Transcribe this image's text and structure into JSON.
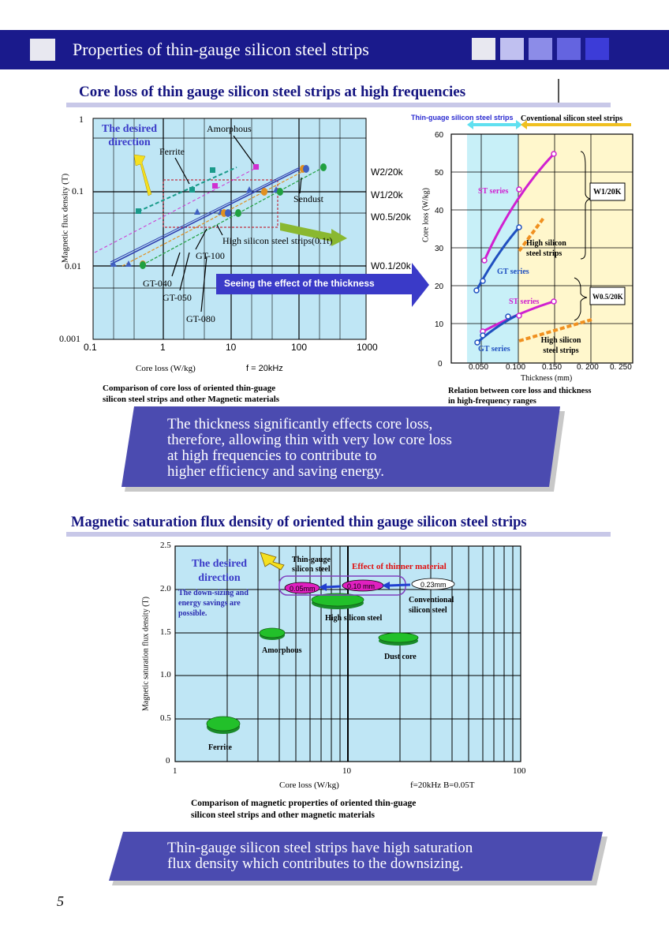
{
  "header": {
    "title": "Properties of thin-gauge silicon steel strips",
    "box_colors": [
      "#e8e8f0",
      "#c0c0f0",
      "#8c8ce8",
      "#6464e0",
      "#3c3cd8"
    ]
  },
  "section1": {
    "title": "Core loss of thin gauge silicon steel strips at high frequencies"
  },
  "chart1": {
    "type": "scatter",
    "xlabel": "Core loss (W/kg)",
    "note": "f = 20kHz",
    "ylabel": "Magnetic flux density (T)",
    "x_ticks": [
      "0.1",
      "1",
      "10",
      "100",
      "1000"
    ],
    "y_ticks": [
      "1",
      "0.1",
      "0.01",
      "0.001"
    ],
    "desired_direction": "The desired direction",
    "labels": {
      "amorphous": "Amorphous",
      "ferrite": "Ferrite",
      "sendust": "Sendust",
      "high_si": "High silicon steel strips(0.1t)",
      "gt100": "GT-100",
      "gt040": "GT-040",
      "gt050": "GT-050",
      "gt080": "GT-080"
    },
    "w_labels": [
      "W2/20k",
      "W1/20k",
      "W0.5/20k",
      "W0.1/20k"
    ],
    "caption": [
      "Comparison of core loss of oriented thin-guage",
      "silicon steel strips and other Magnetic materials"
    ]
  },
  "arrow_label": "Seeing the effect of the thickness",
  "chart2": {
    "type": "line",
    "ylabel": "Core loss (W/kg)",
    "xlabel": "Thickness (mm)",
    "y_ticks": [
      "60",
      "50",
      "40",
      "30",
      "20",
      "10",
      "0"
    ],
    "x_ticks": [
      "0.050",
      "0.100",
      "0.150",
      "0. 200",
      "0. 250"
    ],
    "zone_thin": "Thin-guage silicon steel strips",
    "zone_conv": "Coventional silicon steel strips",
    "series_labels": {
      "st_upper": "ST series",
      "gt_upper": "GT series",
      "hs_upper": "High silicon steel strips",
      "st_lower": "ST series",
      "gt_lower": "GT series",
      "hs_lower": "High silicon steel strips"
    },
    "box_w1": "W1/20K",
    "box_w05": "W0.5/20K",
    "caption": [
      "Relation between core loss and thickness",
      "in high-frequency ranges"
    ]
  },
  "chart_data": [
    {
      "type": "scatter",
      "xlabel": "Core loss (W/kg)",
      "ylabel": "Magnetic flux density (T)",
      "x_scale": "log",
      "y_scale": "log",
      "xlim": [
        0.1,
        1000
      ],
      "ylim": [
        0.001,
        1
      ],
      "series": [
        {
          "name": "Ferrite",
          "color": "#1a9a8a",
          "x": [
            0.5,
            2.5,
            8
          ],
          "y": [
            0.05,
            0.1,
            0.2
          ]
        },
        {
          "name": "Amorphous",
          "color": "#d030d0",
          "x": [
            4,
            10,
            20
          ],
          "y": [
            0.1,
            0.15,
            0.2
          ]
        },
        {
          "name": "GT-040",
          "color": "#4060c0",
          "x": [
            0.2,
            10,
            40
          ],
          "y": [
            0.01,
            0.05,
            0.1
          ]
        },
        {
          "name": "GT-100",
          "color": "#e09020",
          "x": [
            0.3,
            6,
            45,
            110
          ],
          "y": [
            0.01,
            0.05,
            0.1,
            0.2
          ]
        },
        {
          "name": "Sendust",
          "color": "#20a040",
          "x": [
            0.5,
            5,
            60,
            220
          ],
          "y": [
            0.01,
            0.05,
            0.1,
            0.2
          ]
        }
      ]
    },
    {
      "type": "line",
      "xlabel": "Thickness (mm)",
      "ylabel": "Core loss (W/kg)",
      "xlim": [
        0.025,
        0.25
      ],
      "ylim": [
        0,
        60
      ],
      "series": [
        {
          "name": "ST series",
          "color": "#d020d0",
          "x": [
            0.05,
            0.1,
            0.15
          ],
          "y": [
            26,
            45,
            55
          ]
        },
        {
          "name": "GT series",
          "color": "#2050c0",
          "x": [
            0.04,
            0.05,
            0.1
          ],
          "y": [
            18,
            21,
            35
          ]
        },
        {
          "name": "High silicon steel strips",
          "color": "#f09020",
          "x": [
            0.1,
            0.125
          ],
          "y": [
            30,
            38
          ]
        },
        {
          "name": "ST series",
          "color": "#d020d0",
          "x": [
            0.05,
            0.1,
            0.15
          ],
          "y": [
            7,
            10,
            15
          ]
        },
        {
          "name": "GT series",
          "color": "#2050c0",
          "x": [
            0.04,
            0.05,
            0.1
          ],
          "y": [
            4,
            6,
            13
          ]
        },
        {
          "name": "High silicon steel strips",
          "color": "#f09020",
          "x": [
            0.1,
            0.2
          ],
          "y": [
            5,
            10
          ]
        }
      ]
    },
    {
      "type": "scatter",
      "xlabel": "Core loss (W/kg)",
      "ylabel": "Magnetic saturation flux density (T)",
      "x_scale": "log",
      "xlim": [
        1,
        100
      ],
      "ylim": [
        0,
        2.5
      ],
      "series": [
        {
          "name": "Ferrite",
          "x": [
            1.9
          ],
          "y": [
            0.42
          ]
        },
        {
          "name": "Amorphous",
          "x": [
            3.5
          ],
          "y": [
            1.5
          ]
        },
        {
          "name": "High silicon steel",
          "x": [
            6
          ],
          "y": [
            1.86
          ]
        },
        {
          "name": "Dust core",
          "x": [
            17
          ],
          "y": [
            1.44
          ]
        },
        {
          "name": "0.05mm",
          "x": [
            5.5
          ],
          "y": [
            2.0
          ]
        },
        {
          "name": "0.10 mm",
          "x": [
            10.5
          ],
          "y": [
            2.03
          ]
        },
        {
          "name": "0.23mm",
          "x": [
            30
          ],
          "y": [
            2.06
          ]
        }
      ]
    }
  ],
  "banner1": [
    "The thickness significantly effects core loss,",
    "therefore, allowing thin with very low core loss",
    "at high frequencies to contribute to",
    "higher efficiency and saving energy."
  ],
  "section2": {
    "title": "Magnetic saturation flux density of oriented thin gauge silicon steel strips"
  },
  "chart3": {
    "ylabel": "Magnetic saturation flux density (T)",
    "xlabel": "Core loss (W/kg)",
    "note": "f=20kHz B=0.05T",
    "y_ticks": [
      "2.5",
      "2.0",
      "1.5",
      "1.0",
      "0.5",
      "0"
    ],
    "x_ticks": [
      "1",
      "10",
      "100"
    ],
    "desired_direction": "The desired direction",
    "downsizing": "The down-sizing and energy savings are possible.",
    "thin_gauge": "Thin-gauge silicon steel",
    "effect": "Effect of thinner material",
    "conventional": "Conventional silicon steel",
    "labels": {
      "high_si": "High silicon steel",
      "amorphous": "Amorphous",
      "dust": "Dust core",
      "ferrite": "Ferrite",
      "t005": "0.05mm",
      "t010": "0.10 mm",
      "t023": "0.23mm"
    },
    "caption": [
      "Comparison of magnetic properties of oriented thin-guage",
      "silicon steel strips and other magnetic materials"
    ]
  },
  "banner2": [
    "Thin-gauge silicon steel strips have high saturation",
    "flux density which contributes to the downsizing."
  ],
  "page_number": "5"
}
